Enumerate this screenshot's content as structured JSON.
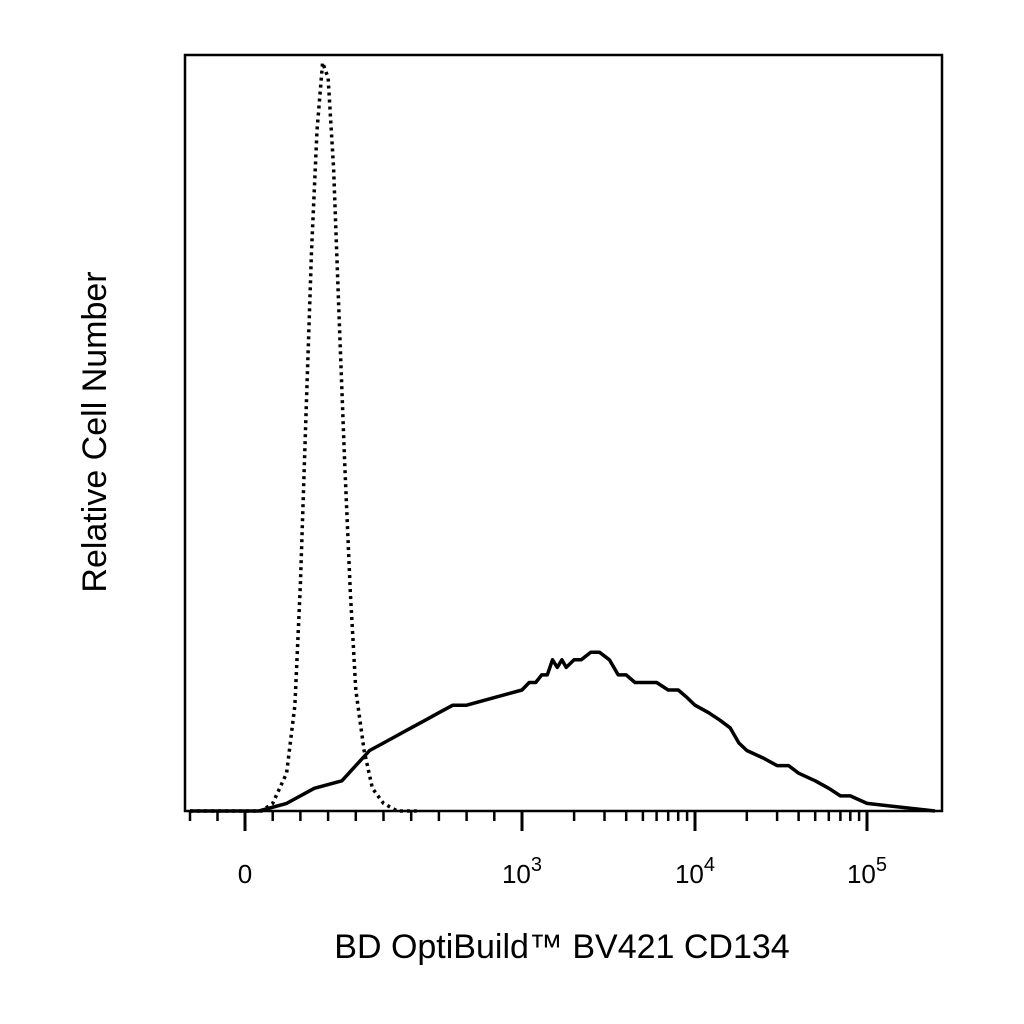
{
  "chart_data": {
    "type": "line",
    "title": "",
    "xlabel": "BD OptiBuild™  BV421 CD134",
    "ylabel": "Relative Cell Number",
    "x_scale": "biexponential",
    "xlim": [
      -200,
      150000
    ],
    "ylim": [
      0,
      100
    ],
    "grid": false,
    "legend": "none",
    "x_tick_labels": [
      {
        "value": 0,
        "base": "0",
        "exp": ""
      },
      {
        "value": 1000,
        "base": "10",
        "exp": "3"
      },
      {
        "value": 10000,
        "base": "10",
        "exp": "4"
      },
      {
        "value": 100000,
        "base": "10",
        "exp": "5"
      }
    ],
    "series": [
      {
        "style": "dotted",
        "x": [
          -200,
          0,
          60,
          100,
          150,
          180,
          200,
          220,
          240,
          260,
          280,
          300,
          320,
          340,
          360,
          380,
          400,
          430,
          460,
          500,
          550,
          620
        ],
        "y": [
          0,
          0,
          0,
          1,
          5,
          14,
          30,
          52,
          74,
          90,
          99,
          97,
          85,
          65,
          46,
          29,
          16,
          8,
          3,
          1,
          0,
          0
        ]
      },
      {
        "style": "solid",
        "x": [
          -200,
          50,
          150,
          250,
          350,
          400,
          450,
          500,
          550,
          600,
          650,
          700,
          750,
          800,
          900,
          1000,
          1100,
          1200,
          1300,
          1400,
          1500,
          1600,
          1700,
          1800,
          2000,
          2200,
          2500,
          2800,
          3200,
          3600,
          4000,
          4500,
          5000,
          5500,
          6000,
          7000,
          8000,
          9000,
          10000,
          12000,
          14000,
          16000,
          18000,
          20000,
          25000,
          30000,
          35000,
          40000,
          50000,
          60000,
          70000,
          80000,
          100000,
          150000
        ],
        "y": [
          0,
          0,
          1,
          3,
          4,
          6,
          8,
          9,
          10,
          11,
          12,
          13,
          14,
          14,
          15,
          16,
          17,
          17,
          18,
          18,
          20,
          19,
          20,
          19,
          20,
          20,
          21,
          21,
          20,
          18,
          18,
          17,
          17,
          17,
          17,
          16,
          16,
          15,
          14,
          13,
          12,
          11,
          9,
          8,
          7,
          6,
          6,
          5,
          4,
          3,
          2,
          2,
          1,
          0
        ]
      }
    ]
  }
}
